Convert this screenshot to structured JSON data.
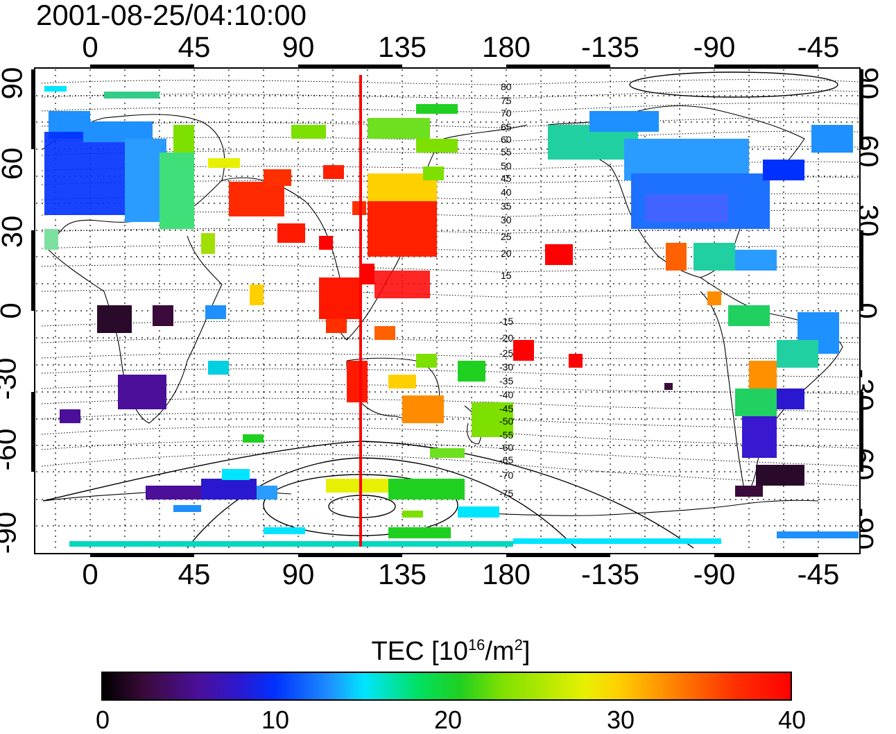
{
  "title": "2001-08-25/04:10:00",
  "axes": {
    "top_ticks": [
      "0",
      "45",
      "90",
      "135",
      "180",
      "-135",
      "-90",
      "-45"
    ],
    "bottom_ticks": [
      "0",
      "45",
      "90",
      "135",
      "180",
      "-135",
      "-90",
      "-45"
    ],
    "left_ticks": [
      "90",
      "60",
      "30",
      "0",
      "-30",
      "-60",
      "-90"
    ],
    "right_ticks": [
      "90",
      "60",
      "30",
      "0",
      "-30",
      "-60",
      "-90"
    ]
  },
  "contour_labels": [
    "80",
    "75",
    "70",
    "65",
    "60",
    "55",
    "50",
    "45",
    "40",
    "35",
    "30",
    "25",
    "20",
    "15",
    "-15",
    "-20",
    "-25",
    "-30",
    "-35",
    "-40",
    "-45",
    "-50",
    "-55",
    "-60",
    "-65",
    "-70",
    "-75"
  ],
  "colorbar": {
    "label_main": "TEC  [10",
    "label_exp1": "16",
    "label_mid": "/m",
    "label_exp2": "2",
    "label_end": "]",
    "ticks": [
      "0",
      "10",
      "20",
      "30",
      "40"
    ]
  },
  "colors": {
    "marker_line": "#ff0000",
    "frame": "#000000"
  }
}
